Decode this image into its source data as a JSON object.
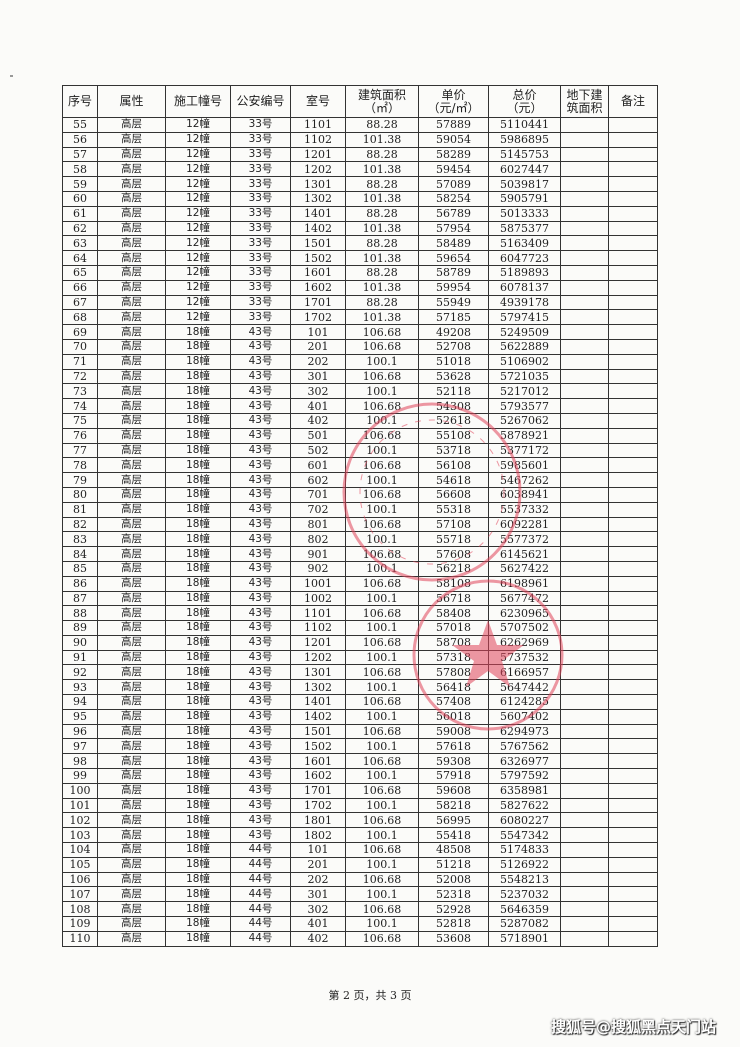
{
  "table": {
    "headers": [
      "序号",
      "属性",
      "施工幢号",
      "公安编号",
      "室号",
      "建筑面积\n（㎡）",
      "单价\n（元/㎡）",
      "总价\n（元）",
      "地下建\n筑面积",
      "备注"
    ],
    "rows": [
      [
        "55",
        "高层",
        "12幢",
        "33号",
        "1101",
        "88.28",
        "57889",
        "5110441",
        "",
        ""
      ],
      [
        "56",
        "高层",
        "12幢",
        "33号",
        "1102",
        "101.38",
        "59054",
        "5986895",
        "",
        ""
      ],
      [
        "57",
        "高层",
        "12幢",
        "33号",
        "1201",
        "88.28",
        "58289",
        "5145753",
        "",
        ""
      ],
      [
        "58",
        "高层",
        "12幢",
        "33号",
        "1202",
        "101.38",
        "59454",
        "6027447",
        "",
        ""
      ],
      [
        "59",
        "高层",
        "12幢",
        "33号",
        "1301",
        "88.28",
        "57089",
        "5039817",
        "",
        ""
      ],
      [
        "60",
        "高层",
        "12幢",
        "33号",
        "1302",
        "101.38",
        "58254",
        "5905791",
        "",
        ""
      ],
      [
        "61",
        "高层",
        "12幢",
        "33号",
        "1401",
        "88.28",
        "56789",
        "5013333",
        "",
        ""
      ],
      [
        "62",
        "高层",
        "12幢",
        "33号",
        "1402",
        "101.38",
        "57954",
        "5875377",
        "",
        ""
      ],
      [
        "63",
        "高层",
        "12幢",
        "33号",
        "1501",
        "88.28",
        "58489",
        "5163409",
        "",
        ""
      ],
      [
        "64",
        "高层",
        "12幢",
        "33号",
        "1502",
        "101.38",
        "59654",
        "6047723",
        "",
        ""
      ],
      [
        "65",
        "高层",
        "12幢",
        "33号",
        "1601",
        "88.28",
        "58789",
        "5189893",
        "",
        ""
      ],
      [
        "66",
        "高层",
        "12幢",
        "33号",
        "1602",
        "101.38",
        "59954",
        "6078137",
        "",
        ""
      ],
      [
        "67",
        "高层",
        "12幢",
        "33号",
        "1701",
        "88.28",
        "55949",
        "4939178",
        "",
        ""
      ],
      [
        "68",
        "高层",
        "12幢",
        "33号",
        "1702",
        "101.38",
        "57185",
        "5797415",
        "",
        ""
      ],
      [
        "69",
        "高层",
        "18幢",
        "43号",
        "101",
        "106.68",
        "49208",
        "5249509",
        "",
        ""
      ],
      [
        "70",
        "高层",
        "18幢",
        "43号",
        "201",
        "106.68",
        "52708",
        "5622889",
        "",
        ""
      ],
      [
        "71",
        "高层",
        "18幢",
        "43号",
        "202",
        "100.1",
        "51018",
        "5106902",
        "",
        ""
      ],
      [
        "72",
        "高层",
        "18幢",
        "43号",
        "301",
        "106.68",
        "53628",
        "5721035",
        "",
        ""
      ],
      [
        "73",
        "高层",
        "18幢",
        "43号",
        "302",
        "100.1",
        "52118",
        "5217012",
        "",
        ""
      ],
      [
        "74",
        "高层",
        "18幢",
        "43号",
        "401",
        "106.68",
        "54308",
        "5793577",
        "",
        ""
      ],
      [
        "75",
        "高层",
        "18幢",
        "43号",
        "402",
        "100.1",
        "52618",
        "5267062",
        "",
        ""
      ],
      [
        "76",
        "高层",
        "18幢",
        "43号",
        "501",
        "106.68",
        "55108",
        "5878921",
        "",
        ""
      ],
      [
        "77",
        "高层",
        "18幢",
        "43号",
        "502",
        "100.1",
        "53718",
        "5377172",
        "",
        ""
      ],
      [
        "78",
        "高层",
        "18幢",
        "43号",
        "601",
        "106.68",
        "56108",
        "5985601",
        "",
        ""
      ],
      [
        "79",
        "高层",
        "18幢",
        "43号",
        "602",
        "100.1",
        "54618",
        "5467262",
        "",
        ""
      ],
      [
        "80",
        "高层",
        "18幢",
        "43号",
        "701",
        "106.68",
        "56608",
        "6038941",
        "",
        ""
      ],
      [
        "81",
        "高层",
        "18幢",
        "43号",
        "702",
        "100.1",
        "55318",
        "5537332",
        "",
        ""
      ],
      [
        "82",
        "高层",
        "18幢",
        "43号",
        "801",
        "106.68",
        "57108",
        "6092281",
        "",
        ""
      ],
      [
        "83",
        "高层",
        "18幢",
        "43号",
        "802",
        "100.1",
        "55718",
        "5577372",
        "",
        ""
      ],
      [
        "84",
        "高层",
        "18幢",
        "43号",
        "901",
        "106.68",
        "57608",
        "6145621",
        "",
        ""
      ],
      [
        "85",
        "高层",
        "18幢",
        "43号",
        "902",
        "100.1",
        "56218",
        "5627422",
        "",
        ""
      ],
      [
        "86",
        "高层",
        "18幢",
        "43号",
        "1001",
        "106.68",
        "58108",
        "6198961",
        "",
        ""
      ],
      [
        "87",
        "高层",
        "18幢",
        "43号",
        "1002",
        "100.1",
        "56718",
        "5677472",
        "",
        ""
      ],
      [
        "88",
        "高层",
        "18幢",
        "43号",
        "1101",
        "106.68",
        "58408",
        "6230965",
        "",
        ""
      ],
      [
        "89",
        "高层",
        "18幢",
        "43号",
        "1102",
        "100.1",
        "57018",
        "5707502",
        "",
        ""
      ],
      [
        "90",
        "高层",
        "18幢",
        "43号",
        "1201",
        "106.68",
        "58708",
        "6262969",
        "",
        ""
      ],
      [
        "91",
        "高层",
        "18幢",
        "43号",
        "1202",
        "100.1",
        "57318",
        "5737532",
        "",
        ""
      ],
      [
        "92",
        "高层",
        "18幢",
        "43号",
        "1301",
        "106.68",
        "57808",
        "6166957",
        "",
        ""
      ],
      [
        "93",
        "高层",
        "18幢",
        "43号",
        "1302",
        "100.1",
        "56418",
        "5647442",
        "",
        ""
      ],
      [
        "94",
        "高层",
        "18幢",
        "43号",
        "1401",
        "106.68",
        "57408",
        "6124285",
        "",
        ""
      ],
      [
        "95",
        "高层",
        "18幢",
        "43号",
        "1402",
        "100.1",
        "56018",
        "5607402",
        "",
        ""
      ],
      [
        "96",
        "高层",
        "18幢",
        "43号",
        "1501",
        "106.68",
        "59008",
        "6294973",
        "",
        ""
      ],
      [
        "97",
        "高层",
        "18幢",
        "43号",
        "1502",
        "100.1",
        "57618",
        "5767562",
        "",
        ""
      ],
      [
        "98",
        "高层",
        "18幢",
        "43号",
        "1601",
        "106.68",
        "59308",
        "6326977",
        "",
        ""
      ],
      [
        "99",
        "高层",
        "18幢",
        "43号",
        "1602",
        "100.1",
        "57918",
        "5797592",
        "",
        ""
      ],
      [
        "100",
        "高层",
        "18幢",
        "43号",
        "1701",
        "106.68",
        "59608",
        "6358981",
        "",
        ""
      ],
      [
        "101",
        "高层",
        "18幢",
        "43号",
        "1702",
        "100.1",
        "58218",
        "5827622",
        "",
        ""
      ],
      [
        "102",
        "高层",
        "18幢",
        "43号",
        "1801",
        "106.68",
        "56995",
        "6080227",
        "",
        ""
      ],
      [
        "103",
        "高层",
        "18幢",
        "43号",
        "1802",
        "100.1",
        "55418",
        "5547342",
        "",
        ""
      ],
      [
        "104",
        "高层",
        "18幢",
        "44号",
        "101",
        "106.68",
        "48508",
        "5174833",
        "",
        ""
      ],
      [
        "105",
        "高层",
        "18幢",
        "44号",
        "201",
        "100.1",
        "51218",
        "5126922",
        "",
        ""
      ],
      [
        "106",
        "高层",
        "18幢",
        "44号",
        "202",
        "106.68",
        "52008",
        "5548213",
        "",
        ""
      ],
      [
        "107",
        "高层",
        "18幢",
        "44号",
        "301",
        "100.1",
        "52318",
        "5237032",
        "",
        ""
      ],
      [
        "108",
        "高层",
        "18幢",
        "44号",
        "302",
        "106.68",
        "52928",
        "5646359",
        "",
        ""
      ],
      [
        "109",
        "高层",
        "18幢",
        "44号",
        "401",
        "100.1",
        "52818",
        "5287082",
        "",
        ""
      ],
      [
        "110",
        "高层",
        "18幢",
        "44号",
        "402",
        "106.68",
        "53608",
        "5718901",
        "",
        ""
      ]
    ]
  },
  "footer": {
    "page_label": "第 2 页，共 3 页"
  },
  "watermark": {
    "text": "搜狐号@搜狐黑点天门站"
  },
  "colors": {
    "stamp": "#e0445a",
    "grid": "#333333"
  }
}
